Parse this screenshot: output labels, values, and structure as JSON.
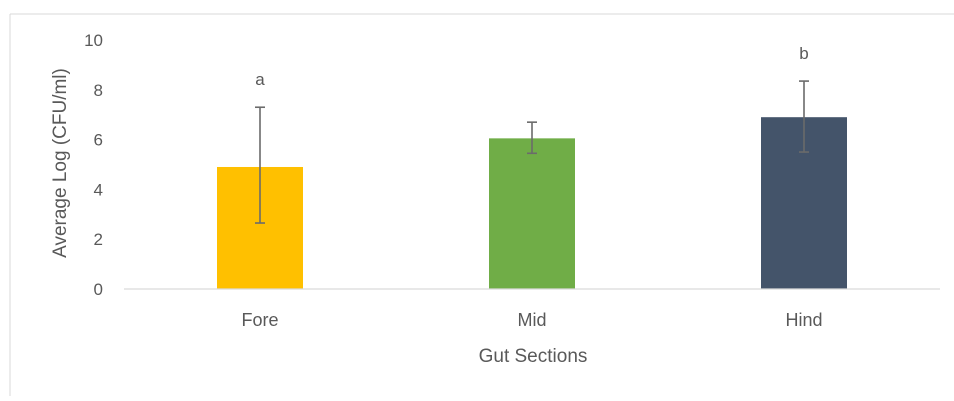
{
  "chart_data": {
    "type": "bar",
    "title": "",
    "xlabel": "Gut Sections",
    "ylabel": "Average Log (CFU/ml)",
    "ylim": [
      0,
      10
    ],
    "yticks": [
      0,
      2,
      4,
      6,
      8,
      10
    ],
    "grid": false,
    "legend": "none",
    "categories": [
      "Fore",
      "Mid",
      "Hind"
    ],
    "values": [
      4.9,
      6.05,
      6.9
    ],
    "error_low": [
      2.65,
      5.45,
      5.5
    ],
    "error_high": [
      7.3,
      6.7,
      8.35
    ],
    "annotations": [
      "a",
      "",
      "b"
    ],
    "colors": [
      "#ffc000",
      "#70ad47",
      "#44546a"
    ]
  }
}
